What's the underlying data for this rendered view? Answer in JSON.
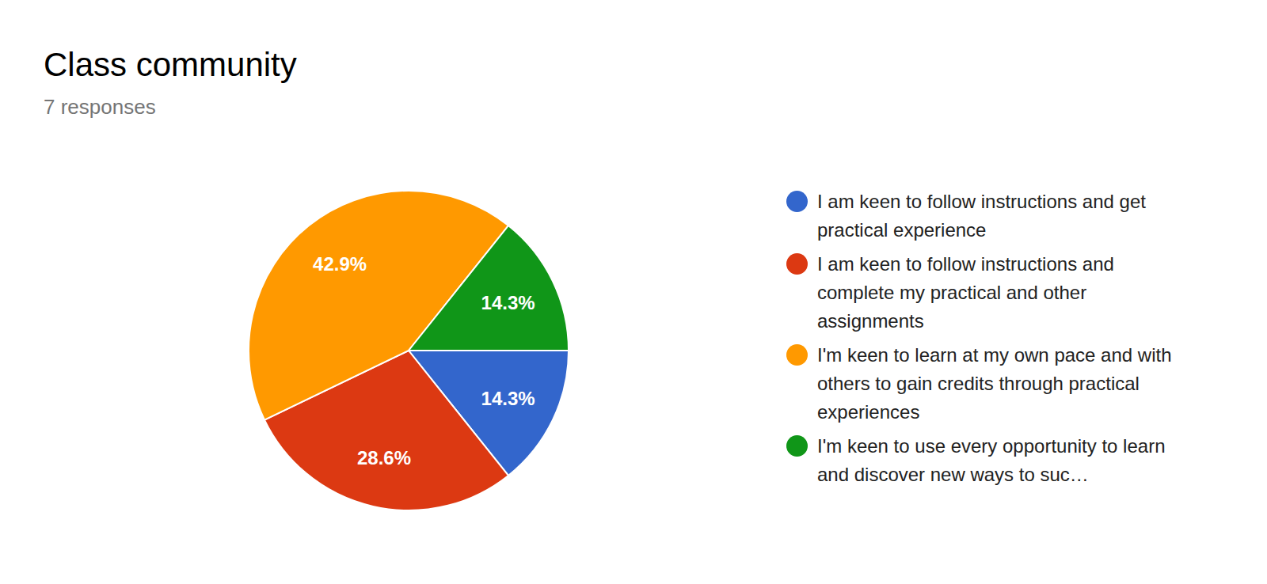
{
  "chart_data": {
    "type": "pie",
    "title": "Class community",
    "subtitle": "7 responses",
    "categories": [
      "I am keen to follow instructions and get practical experience",
      "I am keen to follow instructions and complete my practical and other assignments",
      "I'm keen to learn at my own pace and with others to gain credits through practical experiences",
      "I'm keen to use every opportunity to learn and discover new ways to suc…"
    ],
    "values": [
      14.3,
      28.6,
      42.9,
      14.3
    ],
    "value_labels": [
      "14.3%",
      "28.6%",
      "42.9%",
      "14.3%"
    ],
    "colors": [
      "#3366cc",
      "#dc3912",
      "#ff9900",
      "#109618"
    ],
    "data_labels": true,
    "legend": "right"
  }
}
